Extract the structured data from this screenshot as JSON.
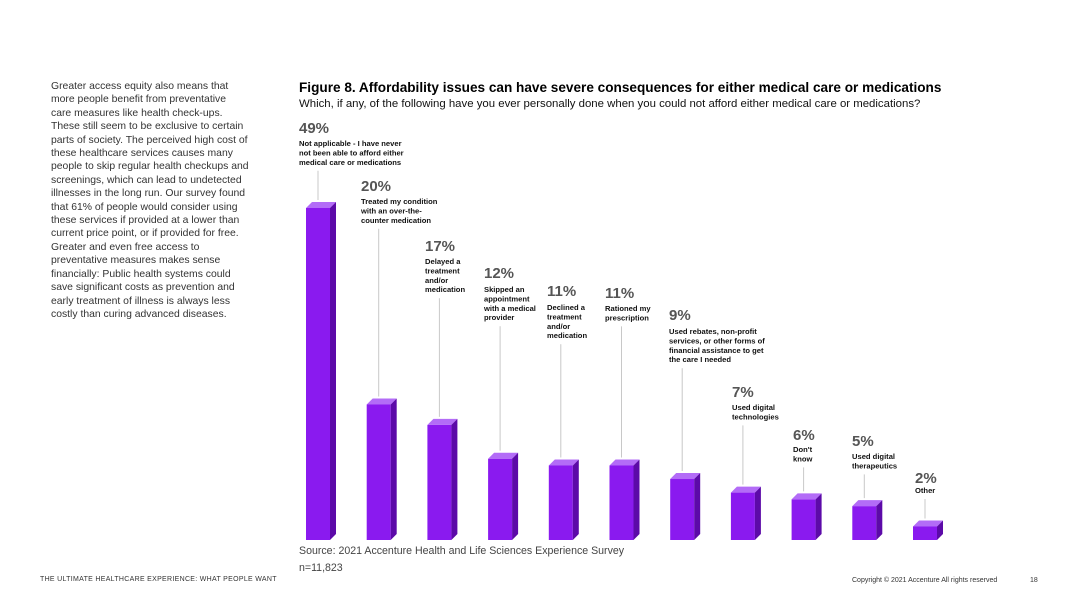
{
  "body_text": "Greater access equity also means that more people benefit from preventative care measures like health check-ups. These still seem to be exclusive to certain parts of society. The perceived high cost of these healthcare services causes many people to skip regular health checkups and screenings, which can lead to undetected illnesses in the long run. Our survey found that 61% of people would consider using these services if provided at a lower than current price point, or if provided for free. Greater and even free access to preventative measures makes sense financially: Public health systems could save significant costs as prevention and early treatment of illness is always less costly than curing advanced diseases.",
  "figure": {
    "title": "Figure 8. Affordability issues can have severe consequences for either medical care or medications",
    "subtitle": "Which, if any, of the following have you ever personally done when you could not afford either medical care or medications?"
  },
  "chart_data": {
    "type": "bar",
    "title": "Figure 8. Affordability issues can have severe consequences for either medical care or medications",
    "unit": "%",
    "ylim": [
      0,
      50
    ],
    "bar_color": "#8a1aef",
    "categories": [
      "Not applicable - I have never not been able to afford either medical care or medications",
      "Treated my condition with an over-the-counter medication",
      "Delayed a treatment and/or medication",
      "Skipped an appointment with a medical provider",
      "Declined a treatment and/or medication",
      "Rationed my prescription",
      "Used rebates, non-profit services, or other forms of financial assistance to get the care I needed",
      "Used digital technologies",
      "Don't know",
      "Used digital therapeutics",
      "Other"
    ],
    "category_lines": [
      [
        "Not applicable - I have never",
        "not been able to afford either",
        "medical care or medications"
      ],
      [
        "Treated my condition",
        "with an over-the-",
        "counter medication"
      ],
      [
        "Delayed a",
        "treatment",
        "and/or",
        "medication"
      ],
      [
        "Skipped an",
        "appointment",
        "with a medical",
        "provider"
      ],
      [
        "Declined a",
        "treatment",
        "and/or",
        "medication"
      ],
      [
        "Rationed my",
        "prescription"
      ],
      [
        "Used rebates, non-profit",
        "services, or other forms of",
        "financial assistance to get",
        "the care I needed"
      ],
      [
        "Used digital",
        "technologies"
      ],
      [
        "Don't",
        "know"
      ],
      [
        "Used digital",
        "therapeutics"
      ],
      [
        "Other"
      ]
    ],
    "values": [
      49,
      20,
      17,
      12,
      11,
      11,
      9,
      7,
      6,
      5,
      2
    ],
    "labels": [
      "49%",
      "20%",
      "17%",
      "12%",
      "11%",
      "11%",
      "9%",
      "7%",
      "6%",
      "5%",
      "2%"
    ]
  },
  "source": "Source: 2021 Accenture Health and Life Sciences Experience Survey",
  "sample": "n=11,823",
  "footer": {
    "left": "THE ULTIMATE HEALTHCARE EXPERIENCE: WHAT PEOPLE WANT",
    "copyright": "Copyright © 2021 Accenture All rights reserved",
    "page": "18"
  }
}
